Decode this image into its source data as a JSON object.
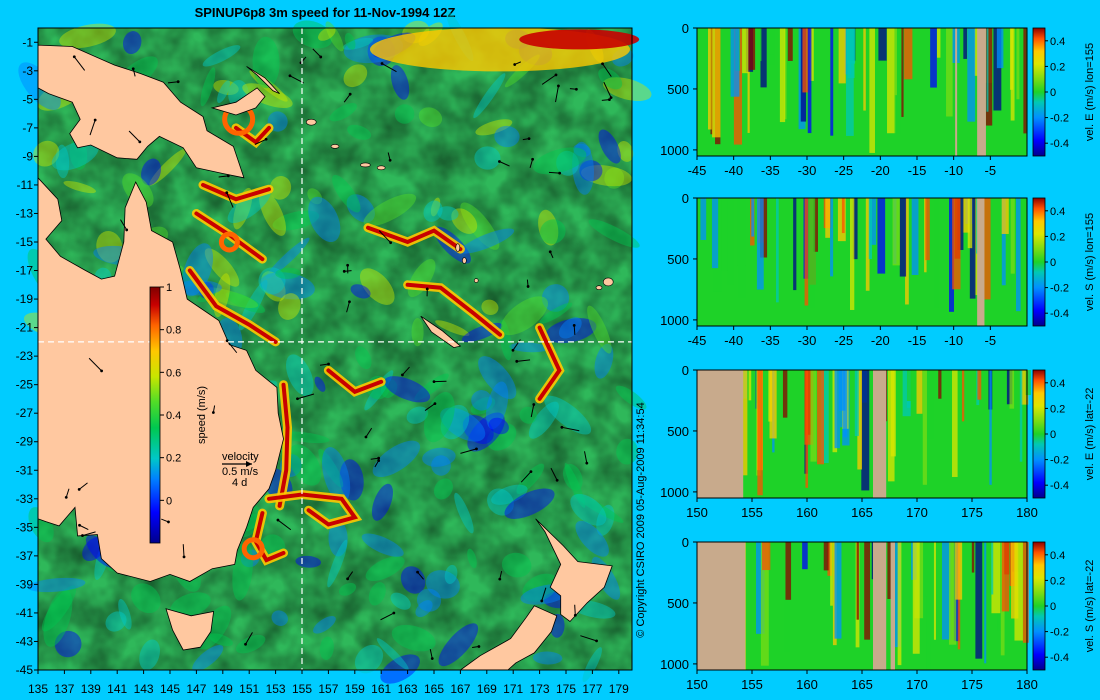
{
  "title": "SPINUP6p8 3m speed for 11-Nov-1994 12Z",
  "colors": {
    "background": "#00ccff",
    "land": "#ffc8a0",
    "section_land": "#c8aa8c",
    "colormap": [
      "#00008c",
      "#0000ff",
      "#0080ff",
      "#00c8c8",
      "#00c850",
      "#50dc28",
      "#c8e600",
      "#ffc800",
      "#ff6400",
      "#c80000",
      "#800000"
    ]
  },
  "map": {
    "lon_labels": [
      "135",
      "137",
      "139",
      "141",
      "143",
      "145",
      "147",
      "149",
      "151",
      "153",
      "155",
      "157",
      "159",
      "161",
      "163",
      "165",
      "167",
      "169",
      "171",
      "173",
      "175",
      "177",
      "179"
    ],
    "lat_labels": [
      "-1",
      "-3",
      "-5",
      "-7",
      "-9",
      "-11",
      "-13",
      "-15",
      "-17",
      "-19",
      "-21",
      "-23",
      "-25",
      "-27",
      "-29",
      "-31",
      "-33",
      "-35",
      "-37",
      "-39",
      "-41",
      "-43",
      "-45"
    ],
    "lon_range": [
      135,
      180
    ],
    "lat_range": [
      -45,
      0
    ],
    "crosshair": {
      "lon": 155,
      "lat": -22
    },
    "colorbar": {
      "label": "speed (m/s)",
      "ticks": [
        "1",
        "0.8",
        "0.6",
        "0.4",
        "0.2",
        "0"
      ],
      "range": [
        -0.2,
        1
      ]
    },
    "velocity_key": {
      "line1": "velocity",
      "line2": "0.5 m/s",
      "line3": "4 d"
    },
    "copyright": "© Copyright CSIRO 2009   05-Aug-2009 11:34:54"
  },
  "sections": [
    {
      "ylabel": "vel. E (m/s) lon=155",
      "x_labels": [
        "-45",
        "-40",
        "-35",
        "-30",
        "-25",
        "-20",
        "-15",
        "-10",
        "-5"
      ],
      "x_range": [
        -45,
        0
      ],
      "land_spans": [
        [
          -9.8,
          -9.6
        ],
        [
          -6.8,
          -5.6
        ]
      ]
    },
    {
      "ylabel": "vel. S (m/s) lon=155",
      "x_labels": [
        "-45",
        "-40",
        "-35",
        "-30",
        "-25",
        "-20",
        "-15",
        "-10",
        "-5"
      ],
      "x_range": [
        -45,
        0
      ],
      "land_spans": [
        [
          -6.8,
          -5.8
        ]
      ]
    },
    {
      "ylabel": "vel. E (m/s) lat=-22",
      "x_labels": [
        "150",
        "155",
        "160",
        "165",
        "170",
        "175",
        "180"
      ],
      "x_range": [
        150,
        180
      ],
      "land_spans": [
        [
          150,
          154.2
        ],
        [
          166,
          167.2
        ]
      ]
    },
    {
      "ylabel": "vel. S (m/s) lat=-22",
      "x_labels": [
        "150",
        "155",
        "160",
        "165",
        "170",
        "175",
        "180"
      ],
      "x_range": [
        150,
        180
      ],
      "land_spans": [
        [
          150,
          154.4
        ],
        [
          166,
          167.2
        ],
        [
          167.6,
          168.0
        ]
      ]
    }
  ],
  "section_y_labels": [
    "0",
    "500",
    "1000"
  ],
  "section_colorbar_ticks": [
    "0.4",
    "0.2",
    "0",
    "-0.2",
    "-0.4"
  ]
}
